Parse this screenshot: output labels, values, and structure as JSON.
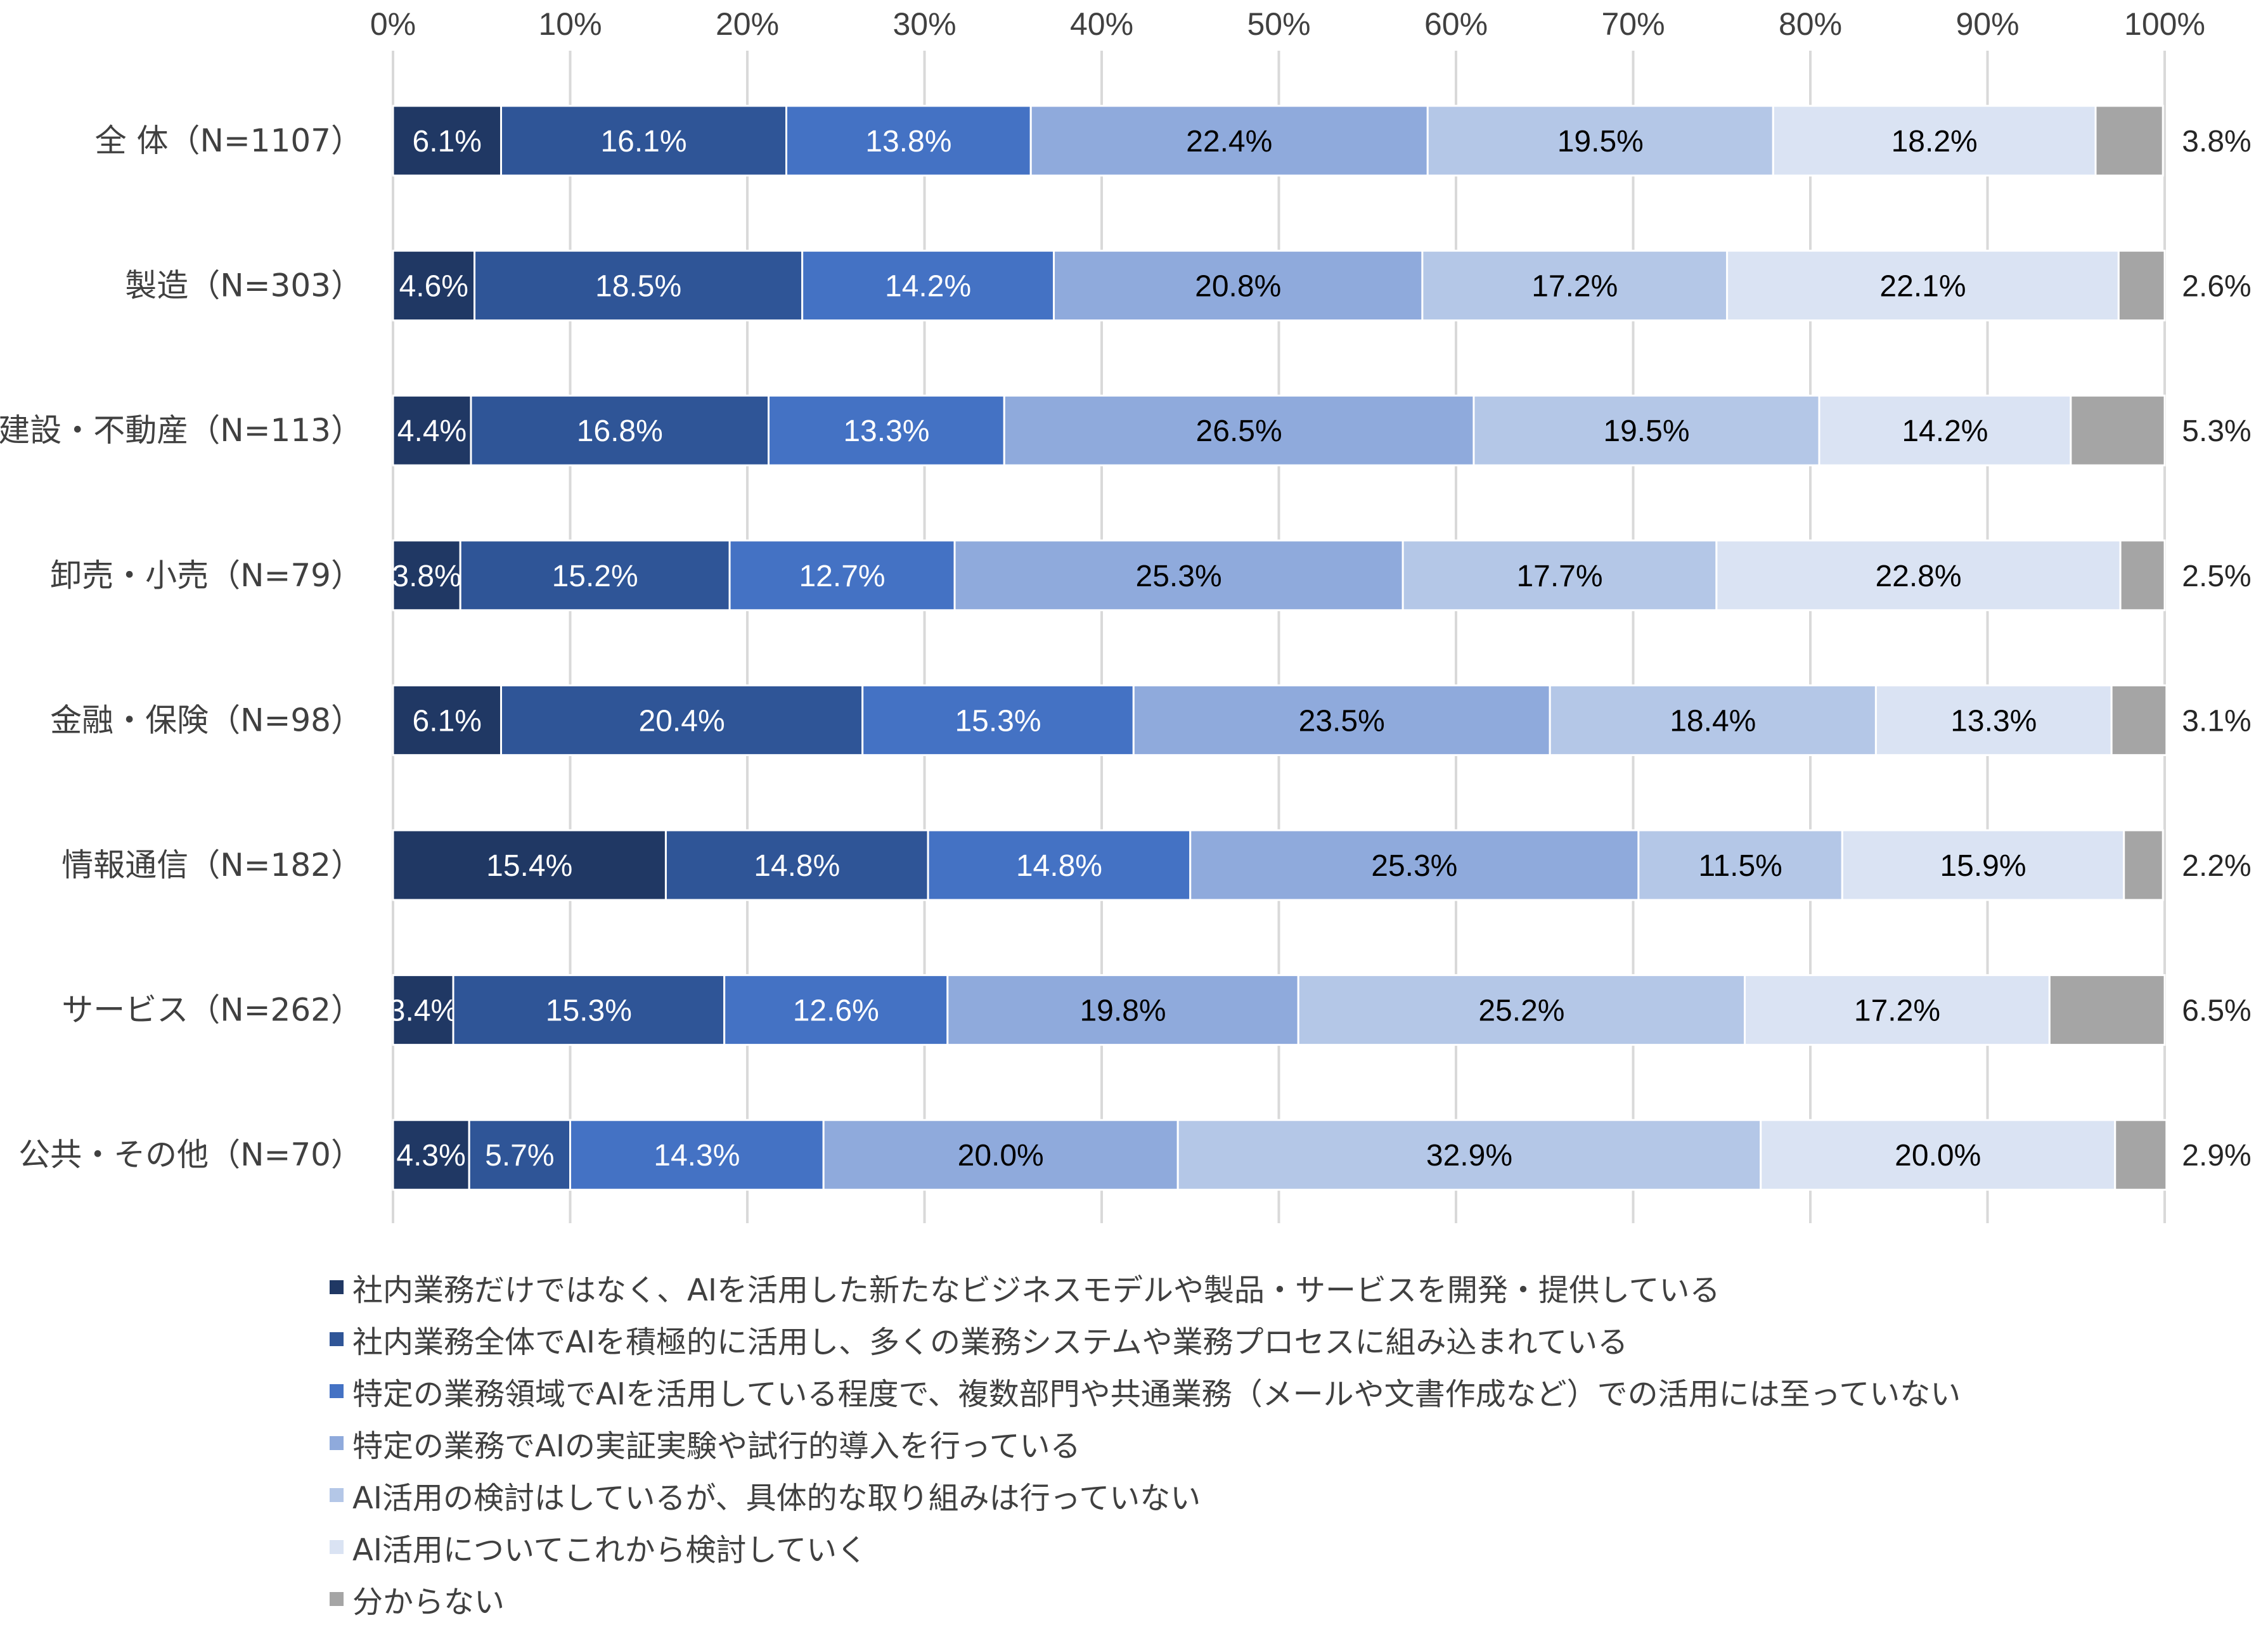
{
  "chart_data": {
    "type": "bar",
    "orientation": "horizontal",
    "stacked": "100%",
    "xlim": [
      0,
      100
    ],
    "x_ticks": [
      "0%",
      "10%",
      "20%",
      "30%",
      "40%",
      "50%",
      "60%",
      "70%",
      "80%",
      "90%",
      "100%"
    ],
    "x_tick_position": "top",
    "grid": "vertical",
    "legend_position": "bottom",
    "categories": [
      "全 体（N=1107）",
      "製造（N=303）",
      "建設・不動産（N=113）",
      "卸売・小売（N=79）",
      "金融・保険（N=98）",
      "情報通信（N=182）",
      "サービス（N=262）",
      "公共・その他（N=70）"
    ],
    "series": [
      {
        "name": "社内業務だけではなく、AIを活用した新たなビジネスモデルや製品・サービスを開発・提供している",
        "color": "#203864",
        "values": [
          6.1,
          4.6,
          4.4,
          3.8,
          6.1,
          15.4,
          3.4,
          4.3
        ]
      },
      {
        "name": "社内業務全体でAIを積極的に活用し、多くの業務システムや業務プロセスに組み込まれている",
        "color": "#2F5597",
        "values": [
          16.1,
          18.5,
          16.8,
          15.2,
          20.4,
          14.8,
          15.3,
          5.7
        ]
      },
      {
        "name": "特定の業務領域でAIを活用している程度で、複数部門や共通業務（メールや文書作成など）での活用には至っていない",
        "color": "#4472C4",
        "values": [
          13.8,
          14.2,
          13.3,
          12.7,
          15.3,
          14.8,
          12.6,
          14.3
        ]
      },
      {
        "name": "特定の業務でAIの実証実験や試行的導入を行っている",
        "color": "#8FAADC",
        "values": [
          22.4,
          20.8,
          26.5,
          25.3,
          23.5,
          25.3,
          19.8,
          20.0
        ]
      },
      {
        "name": "AI活用の検討はしているが、具体的な取り組みは行っていない",
        "color": "#B4C7E7",
        "values": [
          19.5,
          17.2,
          19.5,
          17.7,
          18.4,
          11.5,
          25.2,
          32.9
        ]
      },
      {
        "name": "AI活用についてこれから検討していく",
        "color": "#DAE3F3",
        "values": [
          18.2,
          22.1,
          14.2,
          22.8,
          13.3,
          15.9,
          17.2,
          20.0
        ]
      },
      {
        "name": "分からない",
        "color": "#A5A5A5",
        "values": [
          3.8,
          2.6,
          5.3,
          2.5,
          3.1,
          2.2,
          6.5,
          2.9
        ]
      }
    ]
  }
}
